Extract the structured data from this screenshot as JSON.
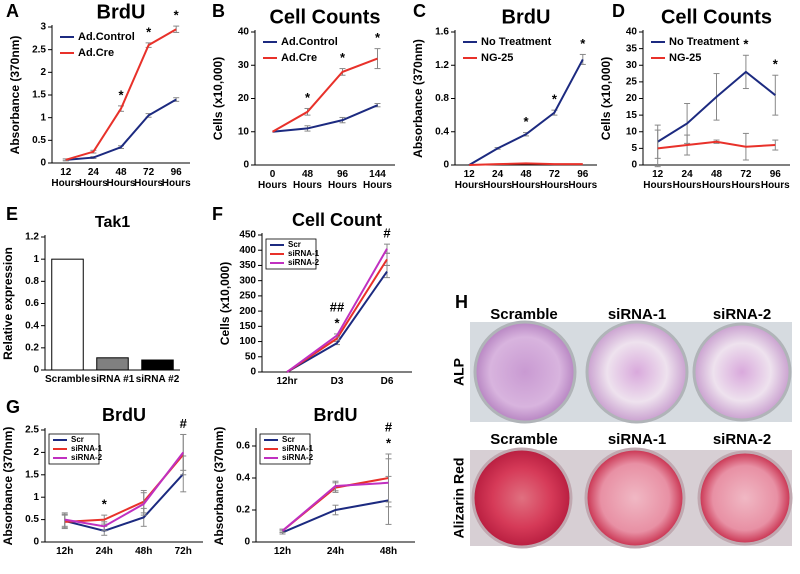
{
  "chart_data": [
    {
      "type": "line",
      "panel": "A",
      "title": "BrdU",
      "ylabel": "Absorbance (370nm)",
      "categories": [
        "12 Hours",
        "24 Hours",
        "48 Hours",
        "72 Hours",
        "96 Hours"
      ],
      "series": [
        {
          "name": "Ad.Control",
          "color": "#1c2a80",
          "values": [
            0.07,
            0.12,
            0.35,
            1.05,
            1.4
          ],
          "errors": [
            0.02,
            0.02,
            0.03,
            0.04,
            0.04
          ]
        },
        {
          "name": "Ad.Cre",
          "color": "#e8312a",
          "values": [
            0.07,
            0.25,
            1.2,
            2.6,
            2.95
          ],
          "errors": [
            0.02,
            0.03,
            0.06,
            0.05,
            0.07
          ]
        }
      ],
      "ylim": [
        0,
        3
      ],
      "yticks": [
        0,
        0.5,
        1,
        1.5,
        2,
        2.5,
        3
      ],
      "legend": "upper left",
      "annotations": [
        {
          "text": "*",
          "at": 2
        },
        {
          "text": "*",
          "at": 3
        },
        {
          "text": "*",
          "at": 4
        }
      ]
    },
    {
      "type": "line",
      "panel": "B",
      "title": "Cell Counts",
      "ylabel": "Cells (x10,000)",
      "categories": [
        "0 Hours",
        "48 Hours",
        "96 Hours",
        "144 Hours"
      ],
      "series": [
        {
          "name": "Ad.Control",
          "color": "#1c2a80",
          "values": [
            10,
            11,
            13.5,
            18
          ],
          "errors": [
            0,
            0.8,
            0.8,
            0.5
          ]
        },
        {
          "name": "Ad.Cre",
          "color": "#e8312a",
          "values": [
            10,
            16,
            28,
            32
          ],
          "errors": [
            0,
            1,
            1,
            3
          ]
        }
      ],
      "ylim": [
        0,
        40
      ],
      "yticks": [
        0,
        10,
        20,
        30,
        40
      ],
      "legend": "upper left",
      "annotations": [
        {
          "text": "*",
          "at": 1
        },
        {
          "text": "*",
          "at": 2
        },
        {
          "text": "*",
          "at": 3
        }
      ]
    },
    {
      "type": "line",
      "panel": "C",
      "title": "BrdU",
      "ylabel": "Absorbance (370nm)",
      "categories": [
        "12 Hours",
        "24 Hours",
        "48 Hours",
        "72 Hours",
        "96 Hours"
      ],
      "series": [
        {
          "name": "No Treatment",
          "color": "#1c2a80",
          "values": [
            0,
            0.2,
            0.37,
            0.63,
            1.27
          ],
          "errors": [
            0,
            0.01,
            0.02,
            0.03,
            0.06
          ]
        },
        {
          "name": "NG-25",
          "color": "#e8312a",
          "values": [
            0,
            0.01,
            0.02,
            0.01,
            0.01
          ],
          "errors": [
            0,
            0,
            0,
            0,
            0
          ]
        }
      ],
      "ylim": [
        0,
        1.6
      ],
      "yticks": [
        0,
        0.4,
        0.8,
        1.2,
        1.6
      ],
      "legend": "upper left",
      "annotations": [
        {
          "text": "*",
          "at": 2
        },
        {
          "text": "*",
          "at": 3
        },
        {
          "text": "*",
          "at": 4
        }
      ]
    },
    {
      "type": "line",
      "panel": "D",
      "title": "Cell Counts",
      "ylabel": "Cells (x10,000)",
      "categories": [
        "12 Hours",
        "24 Hours",
        "48 Hours",
        "72 Hours",
        "96 Hours"
      ],
      "series": [
        {
          "name": "No Treatment",
          "color": "#1c2a80",
          "values": [
            7,
            12.5,
            20.5,
            28,
            21
          ],
          "errors": [
            5,
            6,
            7,
            5,
            6
          ]
        },
        {
          "name": "NG-25",
          "color": "#e8312a",
          "values": [
            5,
            6,
            7,
            5.5,
            6
          ],
          "errors": [
            5.5,
            3,
            0.5,
            4,
            1.5
          ]
        }
      ],
      "ylim": [
        0,
        40
      ],
      "yticks": [
        0,
        5,
        10,
        15,
        20,
        25,
        30,
        35,
        40
      ],
      "legend": "upper left",
      "annotations": [
        {
          "text": "*",
          "at": 3
        },
        {
          "text": "*",
          "at": 4
        }
      ]
    },
    {
      "type": "bar",
      "panel": "E",
      "title": "Tak1",
      "ylabel": "Relative expression",
      "categories": [
        "Scramble",
        "siRNA #1",
        "siRNA #2"
      ],
      "values": [
        1,
        0.11,
        0.09
      ],
      "colors": [
        "#ffffff",
        "#808080",
        "#000000"
      ],
      "ylim": [
        0,
        1.2
      ],
      "yticks": [
        0,
        0.2,
        0.4,
        0.6,
        0.8,
        1,
        1.2
      ]
    },
    {
      "type": "line",
      "panel": "F",
      "title": "Cell Count",
      "ylabel": "Cells (x10,000)",
      "categories": [
        "12hr",
        "D3",
        "D6"
      ],
      "series": [
        {
          "name": "Scr",
          "color": "#1c2a80",
          "values": [
            0,
            95,
            330
          ],
          "errors": [
            0,
            5,
            20
          ]
        },
        {
          "name": "siRNA-1",
          "color": "#e8312a",
          "values": [
            0,
            110,
            370
          ],
          "errors": [
            0,
            5,
            20
          ]
        },
        {
          "name": "siRNA-2",
          "color": "#c030c0",
          "values": [
            0,
            120,
            405
          ],
          "errors": [
            0,
            5,
            15
          ]
        }
      ],
      "ylim": [
        0,
        450
      ],
      "yticks": [
        0,
        50,
        100,
        150,
        200,
        250,
        300,
        350,
        400,
        450
      ],
      "legend": "upper left",
      "legend_frame": true,
      "annotations": [
        {
          "text": "*",
          "at": 1
        },
        {
          "text": "##",
          "at": 1
        },
        {
          "text": "#",
          "at": 2
        }
      ]
    },
    {
      "type": "line",
      "panel": "G",
      "title": "BrdU",
      "ylabel": "Absorbance (370nm)",
      "categories": [
        "12h",
        "24h",
        "48h",
        "72h"
      ],
      "series": [
        {
          "name": "Scr",
          "color": "#1c2a80",
          "values": [
            0.47,
            0.25,
            0.55,
            1.52
          ],
          "errors": [
            0.15,
            0.1,
            0.2,
            0.4
          ]
        },
        {
          "name": "siRNA-1",
          "color": "#e8312a",
          "values": [
            0.45,
            0.5,
            0.9,
            1.95
          ],
          "errors": [
            0.15,
            0.1,
            0.25,
            0.45
          ]
        },
        {
          "name": "siRNA-2",
          "color": "#c030c0",
          "values": [
            0.5,
            0.35,
            0.85,
            2.0
          ],
          "errors": [
            0.15,
            0.1,
            0.25,
            0.4
          ]
        }
      ],
      "ylim": [
        0,
        2.5
      ],
      "yticks": [
        0,
        0.5,
        1,
        1.5,
        2,
        2.5
      ],
      "legend": "upper left",
      "legend_frame": true,
      "annotations": [
        {
          "text": "*",
          "at": 1
        },
        {
          "text": "#",
          "at": 3
        }
      ]
    },
    {
      "type": "line",
      "title": "BrdU",
      "ylabel": "Absorbance (370nm)",
      "categories": [
        "12h",
        "24h",
        "48h"
      ],
      "series": [
        {
          "name": "Scr",
          "color": "#1c2a80",
          "values": [
            0.06,
            0.2,
            0.26
          ],
          "errors": [
            0.01,
            0.03,
            0.15
          ]
        },
        {
          "name": "siRNA-1",
          "color": "#e8312a",
          "values": [
            0.07,
            0.34,
            0.4
          ],
          "errors": [
            0.01,
            0.03,
            0.15
          ]
        },
        {
          "name": "siRNA-2",
          "color": "#c030c0",
          "values": [
            0.07,
            0.35,
            0.37
          ],
          "errors": [
            0.01,
            0.03,
            0.15
          ]
        }
      ],
      "ylim": [
        0,
        0.7
      ],
      "yticks": [
        0,
        0.2,
        0.4,
        0.6
      ],
      "legend": "upper left",
      "legend_frame": true,
      "annotations": [
        {
          "text": "*",
          "at": 2
        },
        {
          "text": "#",
          "at": 2
        }
      ]
    }
  ],
  "image_panel": {
    "panel": "H",
    "rows": [
      {
        "label": "ALP",
        "columns": [
          "Scramble",
          "siRNA-1",
          "siRNA-2"
        ]
      },
      {
        "label": "Alizarin Red",
        "columns": [
          "Scramble",
          "siRNA-1",
          "siRNA-2"
        ]
      }
    ]
  }
}
